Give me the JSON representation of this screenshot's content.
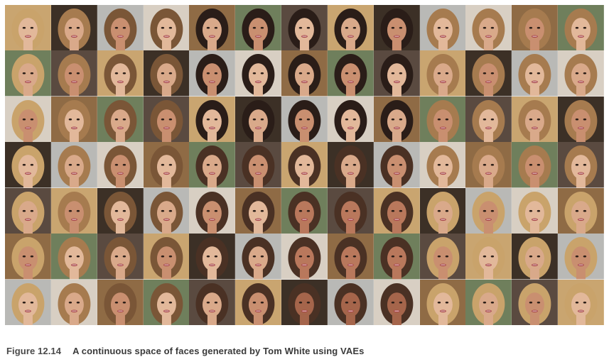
{
  "figure": {
    "grid": {
      "rows": 7,
      "columns": 13
    },
    "caption_label": "Figure 12.14",
    "caption_text": "A continuous space of faces generated by Tom White using VAEs"
  },
  "palette": {
    "skin": [
      "#e2b89a",
      "#d9a98a",
      "#c98f70",
      "#b9785c",
      "#a5654b"
    ],
    "hair": [
      "#2a1d18",
      "#4a3124",
      "#7a5637",
      "#a67b4f",
      "#c9a36b",
      "#d8bd8a"
    ],
    "background": [
      "#c9a570",
      "#8f6b45",
      "#3c3026",
      "#6f7f5c",
      "#b9b9b6",
      "#5a4a40",
      "#d8cfc3"
    ]
  }
}
